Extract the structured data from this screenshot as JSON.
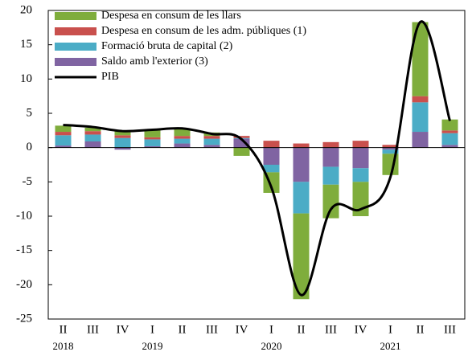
{
  "chart_data": {
    "type": "stacked_bar_line",
    "categories": [
      "II",
      "III",
      "IV",
      "I",
      "II",
      "III",
      "IV",
      "I",
      "II",
      "III",
      "IV",
      "I",
      "II",
      "III"
    ],
    "years": [
      "2018",
      null,
      null,
      "2019",
      null,
      null,
      null,
      "2020",
      null,
      null,
      null,
      "2021",
      null,
      null
    ],
    "series": [
      {
        "name": "Despesa en consum de les llars",
        "color": "#7fad3c",
        "values": [
          0.9,
          0.5,
          0.6,
          1.1,
          1.0,
          0.5,
          -1.2,
          -3.0,
          -12.5,
          -4.9,
          -5.0,
          -3.1,
          10.8,
          1.6
        ]
      },
      {
        "name": "Despesa en consum de les adm. públiques (1)",
        "color": "#c9504d",
        "values": [
          0.5,
          0.5,
          0.4,
          0.3,
          0.4,
          0.4,
          0.3,
          1.0,
          0.6,
          0.8,
          1.0,
          0.4,
          0.9,
          0.4
        ]
      },
      {
        "name": "Formació bruta de capital (2)",
        "color": "#4bacc6",
        "values": [
          1.5,
          1.0,
          1.4,
          1.0,
          0.7,
          0.9,
          0.1,
          -1.1,
          -4.6,
          -2.6,
          -2.0,
          -0.6,
          4.3,
          1.7
        ]
      },
      {
        "name": "Saldo amb l'exterior (3)",
        "color": "#8064a2",
        "values": [
          0.3,
          0.9,
          -0.3,
          0.2,
          0.6,
          0.4,
          1.3,
          -2.5,
          -5.0,
          -2.8,
          -3.0,
          -0.3,
          2.3,
          0.4
        ]
      }
    ],
    "line": {
      "name": "PIB",
      "color": "#000000",
      "values": [
        3.3,
        3.0,
        2.4,
        2.6,
        2.8,
        2.0,
        1.2,
        -5.8,
        -21.5,
        -9.0,
        -9.0,
        -4.3,
        18.3,
        3.9
      ]
    },
    "ylim": [
      -25,
      20
    ],
    "yticks": [
      -25,
      -20,
      -15,
      -10,
      -5,
      0,
      5,
      10,
      15,
      20
    ]
  }
}
